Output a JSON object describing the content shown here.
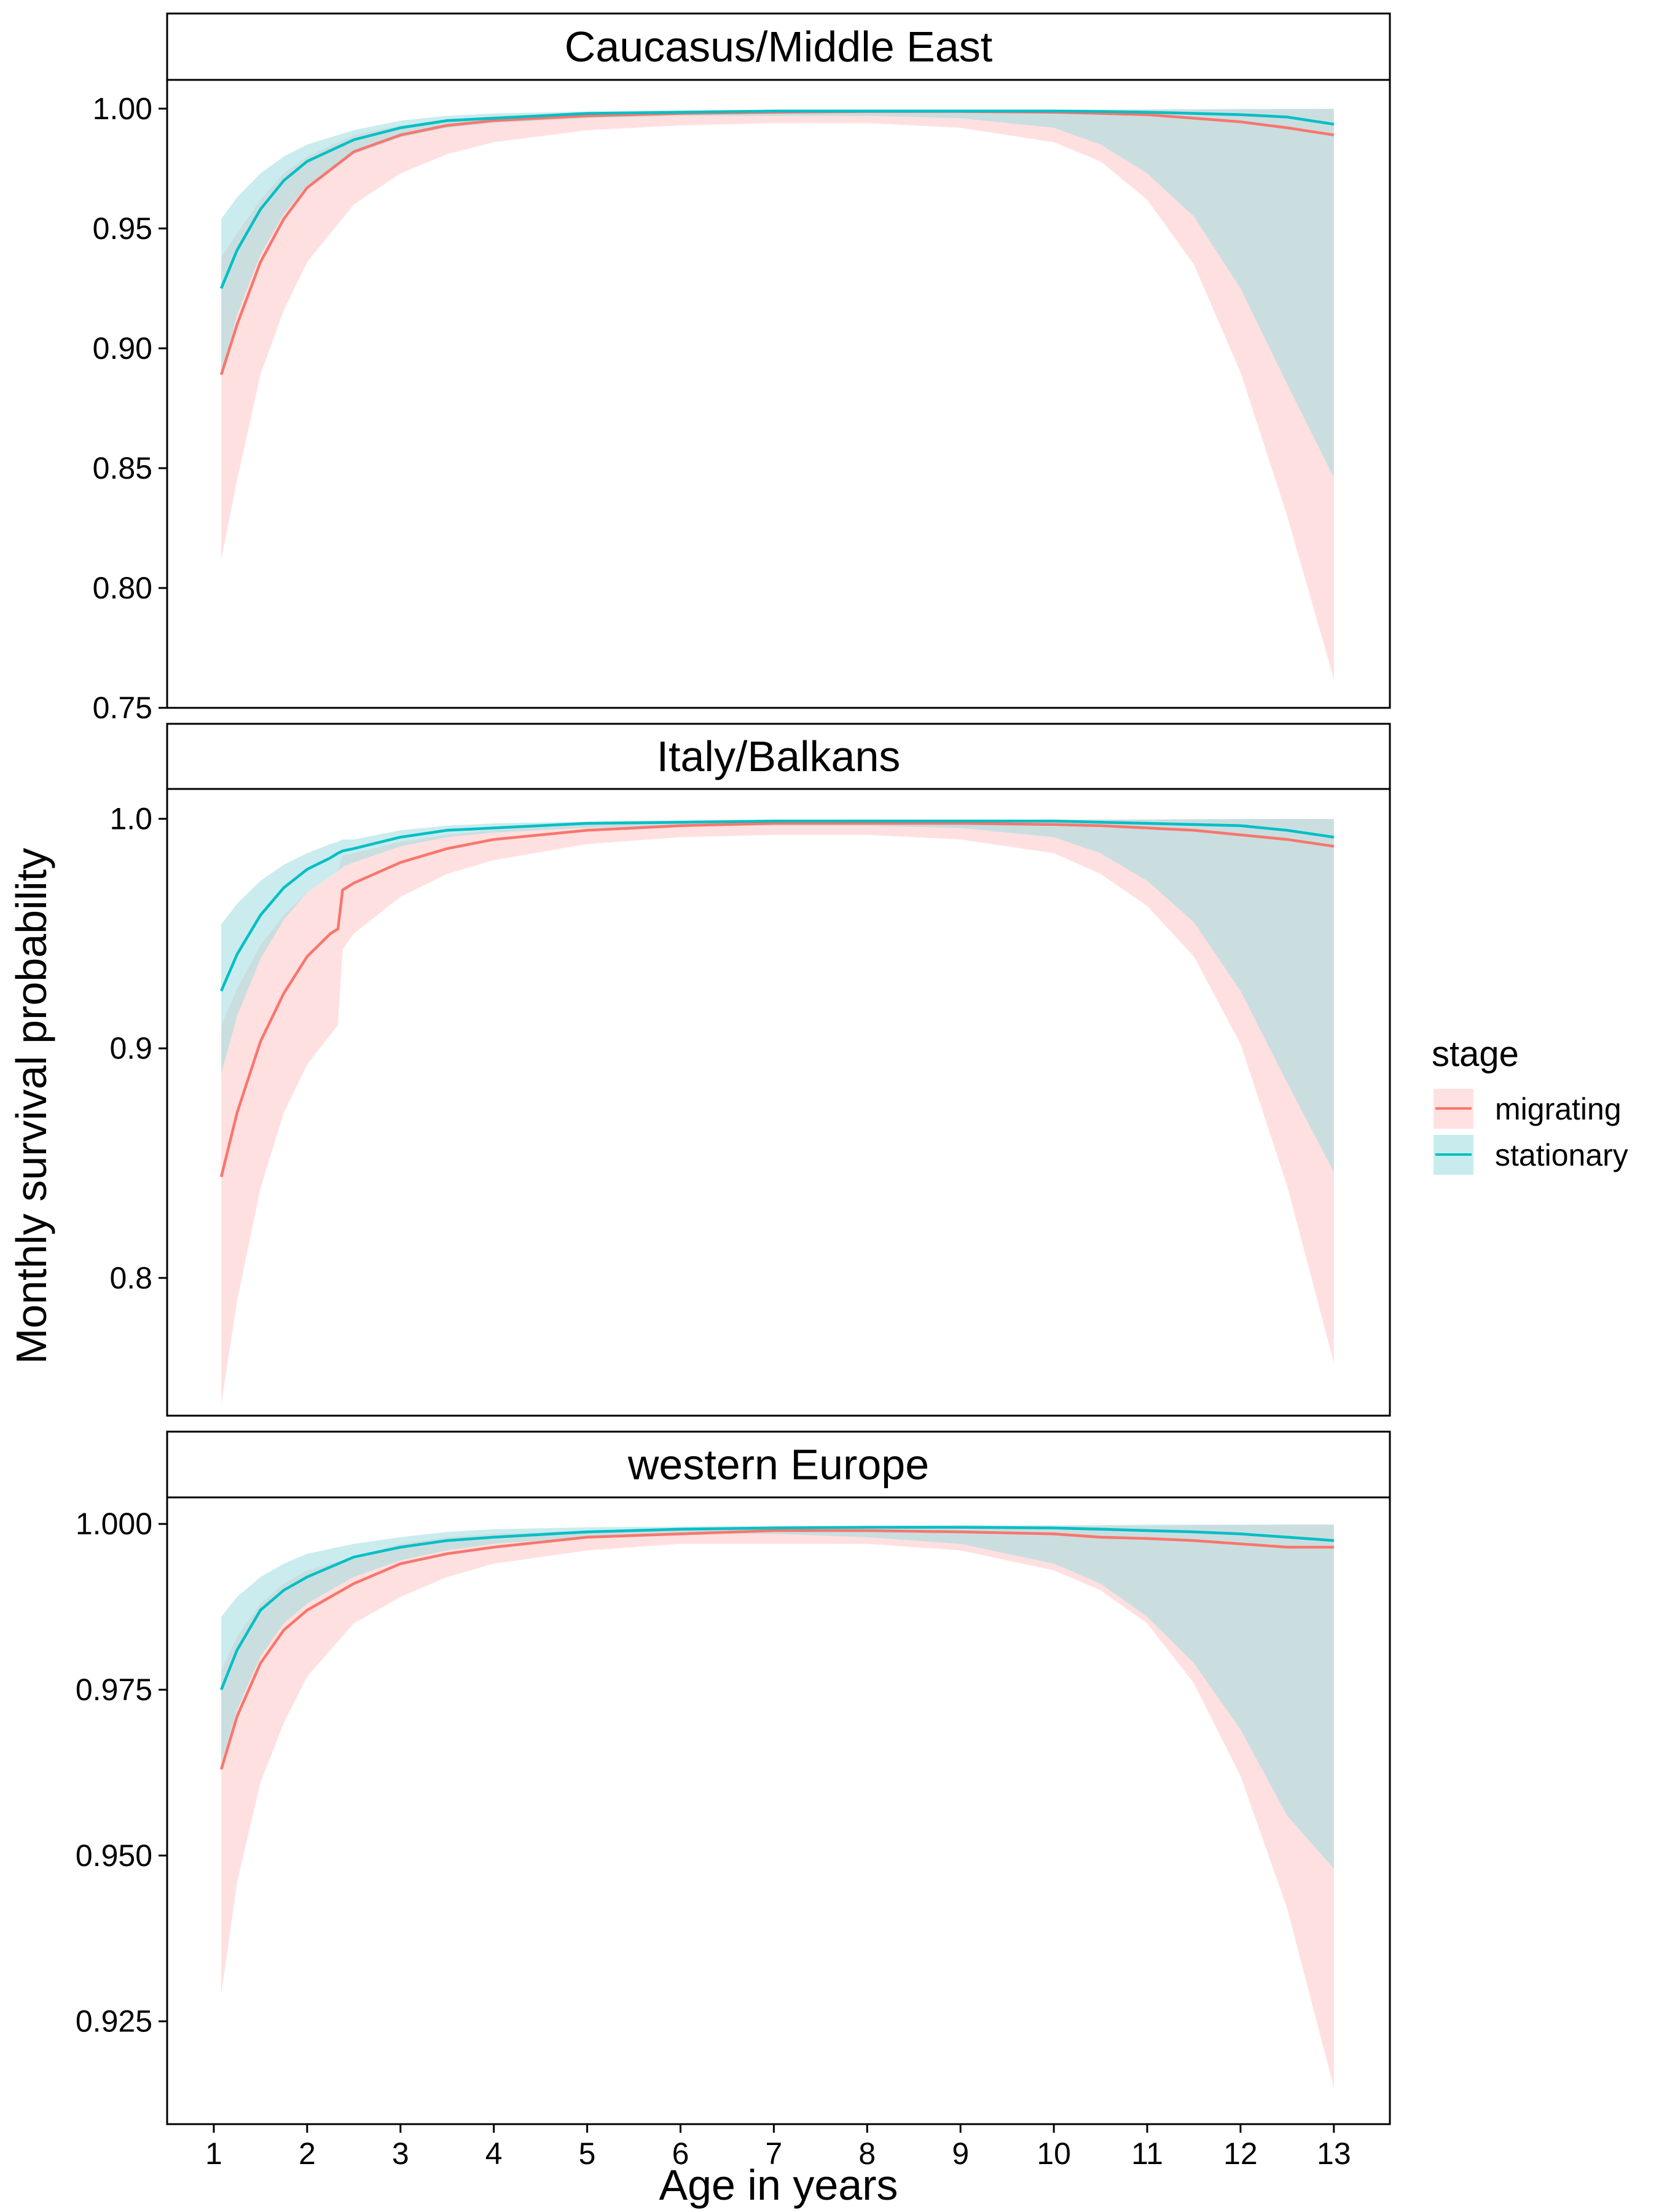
{
  "chart_data": {
    "type": "line",
    "ylabel": "Monthly survival probability",
    "xlabel": "Age in years",
    "x_ticks": [
      1,
      2,
      3,
      4,
      5,
      6,
      7,
      8,
      9,
      10,
      11,
      12,
      13
    ],
    "xlim": [
      0.5,
      13.6
    ],
    "grid": false,
    "legend": {
      "title": "stage",
      "position": "right",
      "entries": [
        {
          "name": "migrating",
          "line_color": "#F8766D",
          "fill_color": "#FFE1E1"
        },
        {
          "name": "stationary",
          "line_color": "#00BFC4",
          "fill_color": "#C8ECEE"
        }
      ]
    },
    "overlap_fill_color": "#CDE0DF",
    "panels": [
      {
        "title": "Caucasus/Middle East",
        "ylim": [
          0.75,
          1.012
        ],
        "y_ticks": [
          0.75,
          0.8,
          0.85,
          0.9,
          0.95,
          1.0
        ],
        "y_tick_labels": [
          "0.75",
          "0.80",
          "0.85",
          "0.90",
          "0.95",
          "1.00"
        ],
        "x": [
          1.08,
          1.25,
          1.5,
          1.75,
          2,
          2.5,
          3,
          3.5,
          4,
          5,
          6,
          7,
          8,
          9,
          10,
          10.5,
          11,
          11.5,
          12,
          12.5,
          13
        ],
        "series": [
          {
            "name": "migrating",
            "mean": [
              0.889,
              0.91,
              0.936,
              0.954,
              0.967,
              0.982,
              0.989,
              0.993,
              0.995,
              0.997,
              0.998,
              0.9985,
              0.9988,
              0.9988,
              0.9985,
              0.998,
              0.9975,
              0.996,
              0.9945,
              0.992,
              0.989
            ],
            "lower": [
              0.812,
              0.845,
              0.889,
              0.916,
              0.936,
              0.96,
              0.973,
              0.981,
              0.986,
              0.991,
              0.993,
              0.994,
              0.994,
              0.992,
              0.986,
              0.978,
              0.962,
              0.935,
              0.89,
              0.83,
              0.762
            ],
            "upper": [
              0.938,
              0.948,
              0.962,
              0.973,
              0.98,
              0.989,
              0.993,
              0.995,
              0.997,
              0.998,
              0.9988,
              0.9993,
              0.9995,
              0.9995,
              0.9995,
              0.9995,
              0.9995,
              0.9996,
              0.9997,
              0.9998,
              0.9999
            ]
          },
          {
            "name": "stationary",
            "mean": [
              0.925,
              0.941,
              0.958,
              0.97,
              0.978,
              0.987,
              0.992,
              0.995,
              0.996,
              0.998,
              0.9985,
              0.999,
              0.999,
              0.999,
              0.999,
              0.9988,
              0.9985,
              0.998,
              0.9975,
              0.9965,
              0.9935
            ],
            "lower": [
              0.889,
              0.914,
              0.939,
              0.956,
              0.968,
              0.981,
              0.988,
              0.992,
              0.994,
              0.996,
              0.997,
              0.997,
              0.997,
              0.996,
              0.992,
              0.985,
              0.973,
              0.955,
              0.925,
              0.885,
              0.846
            ],
            "upper": [
              0.954,
              0.963,
              0.973,
              0.98,
              0.985,
              0.991,
              0.995,
              0.997,
              0.998,
              0.9988,
              0.9993,
              0.9995,
              0.9996,
              0.9996,
              0.9996,
              0.9996,
              0.9997,
              0.9998,
              0.9999,
              0.9999,
              0.9999
            ]
          }
        ]
      },
      {
        "title": "Italy/Balkans",
        "ylim": [
          0.74,
          1.013
        ],
        "y_ticks": [
          0.8,
          0.9,
          1.0
        ],
        "y_tick_labels": [
          "0.8",
          "0.9",
          "1.0"
        ],
        "x": [
          1.08,
          1.25,
          1.5,
          1.75,
          2,
          2.25,
          2.33,
          2.38,
          2.5,
          3,
          3.5,
          4,
          5,
          6,
          7,
          8,
          9,
          10,
          10.5,
          11,
          11.5,
          12,
          12.5,
          13
        ],
        "series": [
          {
            "name": "migrating",
            "mean": [
              0.844,
              0.872,
              0.903,
              0.924,
              0.94,
              0.95,
              0.952,
              0.969,
              0.972,
              0.981,
              0.987,
              0.991,
              0.995,
              0.997,
              0.998,
              0.998,
              0.998,
              0.9975,
              0.997,
              0.996,
              0.995,
              0.993,
              0.991,
              0.988
            ],
            "lower": [
              0.745,
              0.79,
              0.839,
              0.872,
              0.893,
              0.906,
              0.91,
              0.943,
              0.95,
              0.966,
              0.976,
              0.982,
              0.989,
              0.992,
              0.993,
              0.993,
              0.991,
              0.985,
              0.976,
              0.962,
              0.94,
              0.902,
              0.84,
              0.763
            ],
            "upper": [
              0.91,
              0.926,
              0.945,
              0.958,
              0.968,
              0.975,
              0.977,
              0.984,
              0.985,
              0.99,
              0.993,
              0.995,
              0.998,
              0.999,
              0.9995,
              0.9997,
              0.9997,
              0.9997,
              0.9997,
              0.9997,
              0.9998,
              0.9998,
              0.9999,
              0.9999
            ]
          },
          {
            "name": "stationary",
            "mean": [
              0.925,
              0.941,
              0.958,
              0.97,
              0.978,
              0.983,
              0.985,
              0.986,
              0.987,
              0.992,
              0.995,
              0.996,
              0.998,
              0.9985,
              0.999,
              0.999,
              0.999,
              0.999,
              0.9985,
              0.998,
              0.9975,
              0.997,
              0.995,
              0.992
            ],
            "lower": [
              0.889,
              0.914,
              0.939,
              0.956,
              0.968,
              0.975,
              0.977,
              0.979,
              0.981,
              0.988,
              0.992,
              0.994,
              0.996,
              0.997,
              0.997,
              0.997,
              0.996,
              0.992,
              0.985,
              0.973,
              0.955,
              0.925,
              0.885,
              0.846
            ],
            "upper": [
              0.954,
              0.963,
              0.973,
              0.98,
              0.985,
              0.989,
              0.99,
              0.991,
              0.991,
              0.995,
              0.997,
              0.998,
              0.9988,
              0.9993,
              0.9995,
              0.9996,
              0.9996,
              0.9996,
              0.9996,
              0.9997,
              0.9998,
              0.9999,
              0.9999,
              0.9999
            ]
          }
        ]
      },
      {
        "title": "western Europe",
        "ylim": [
          0.9095,
          1.004
        ],
        "y_ticks": [
          0.925,
          0.95,
          0.975,
          1.0
        ],
        "y_tick_labels": [
          "0.925",
          "0.950",
          "0.975",
          "1.000"
        ],
        "x": [
          1.08,
          1.25,
          1.5,
          1.75,
          2,
          2.5,
          3,
          3.5,
          4,
          5,
          6,
          7,
          8,
          9,
          10,
          10.5,
          11,
          11.5,
          12,
          12.5,
          13
        ],
        "series": [
          {
            "name": "migrating",
            "mean": [
              0.963,
              0.971,
              0.979,
              0.984,
              0.987,
              0.991,
              0.994,
              0.9955,
              0.9965,
              0.998,
              0.9985,
              0.999,
              0.999,
              0.9988,
              0.9985,
              0.998,
              0.9978,
              0.9975,
              0.997,
              0.9965,
              0.9965
            ],
            "lower": [
              0.929,
              0.946,
              0.961,
              0.97,
              0.977,
              0.985,
              0.989,
              0.992,
              0.994,
              0.996,
              0.997,
              0.997,
              0.997,
              0.996,
              0.993,
              0.99,
              0.985,
              0.976,
              0.962,
              0.942,
              0.915
            ],
            "upper": [
              0.978,
              0.983,
              0.988,
              0.991,
              0.993,
              0.995,
              0.997,
              0.998,
              0.9985,
              0.999,
              0.9993,
              0.9995,
              0.9996,
              0.9996,
              0.9996,
              0.9997,
              0.9997,
              0.9998,
              0.9998,
              0.9999,
              0.9999
            ]
          },
          {
            "name": "stationary",
            "mean": [
              0.975,
              0.981,
              0.987,
              0.99,
              0.992,
              0.995,
              0.9965,
              0.9975,
              0.998,
              0.9988,
              0.9992,
              0.9994,
              0.9995,
              0.9995,
              0.9994,
              0.9992,
              0.999,
              0.9988,
              0.9985,
              0.998,
              0.9975
            ],
            "lower": [
              0.964,
              0.972,
              0.98,
              0.985,
              0.988,
              0.992,
              0.9945,
              0.996,
              0.997,
              0.998,
              0.9985,
              0.9985,
              0.998,
              0.997,
              0.994,
              0.991,
              0.986,
              0.979,
              0.969,
              0.956,
              0.948
            ],
            "upper": [
              0.986,
              0.989,
              0.992,
              0.994,
              0.9955,
              0.997,
              0.998,
              0.9988,
              0.9992,
              0.9995,
              0.9996,
              0.9997,
              0.9997,
              0.9998,
              0.9998,
              0.9998,
              0.9999,
              0.9999,
              0.9999,
              0.9999,
              0.9999
            ]
          }
        ]
      }
    ]
  }
}
